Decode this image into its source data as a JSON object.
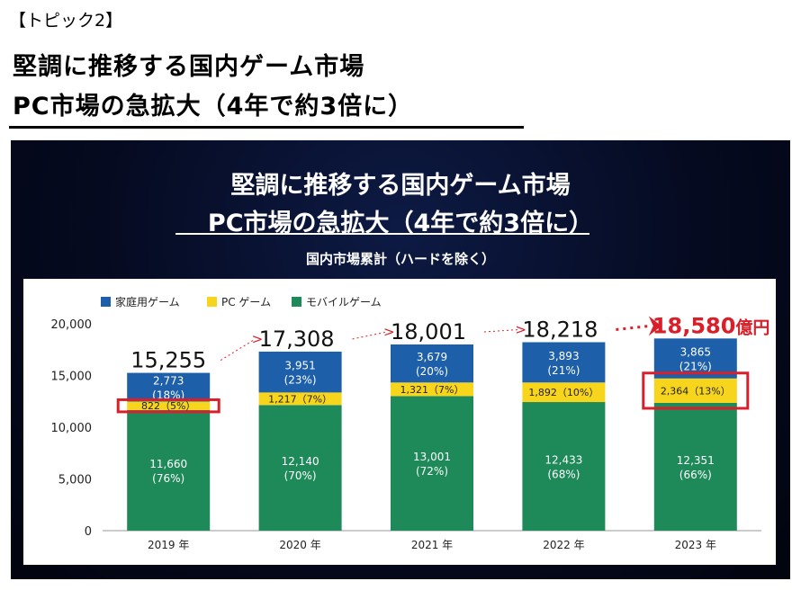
{
  "header": {
    "topic_tag": "【トピック2】",
    "title_line1": "堅調に推移する国内ゲーム市場",
    "title_line2": "PC市場の急拡大（4年で約3倍に）"
  },
  "panel": {
    "title_line1": "堅調に推移する国内ゲーム市場",
    "title_line2": "PC市場の急拡大（4年で約3倍に）",
    "subtitle": "国内市場累計（ハードを除く）"
  },
  "chart_data": {
    "type": "bar",
    "stacked": true,
    "categories": [
      "2019 年",
      "2020 年",
      "2021 年",
      "2022 年",
      "2023 年"
    ],
    "series": [
      {
        "name": "モバイルゲーム",
        "color": "#1e8a5a",
        "values": [
          11660,
          12140,
          13001,
          12433,
          12351
        ],
        "labels": [
          "11,660",
          "12,140",
          "13,001",
          "12,433",
          "12,351"
        ],
        "pct": [
          "(76%)",
          "(70%)",
          "(72%)",
          "(68%)",
          "(66%)"
        ]
      },
      {
        "name": "PC ゲーム",
        "color": "#f7d51d",
        "values": [
          822,
          1217,
          1321,
          1892,
          2364
        ],
        "labels": [
          "822（5%）",
          "1,217（7%）",
          "1,321（7%）",
          "1,892（10%）",
          "2,364（13%）"
        ]
      },
      {
        "name": "家庭用ゲーム",
        "color": "#1d5fa8",
        "values": [
          2773,
          3951,
          3679,
          3893,
          3865
        ],
        "labels": [
          "2,773",
          "3,951",
          "3,679",
          "3,893",
          "3,865"
        ],
        "pct": [
          "(18%)",
          "(23%)",
          "(20%)",
          "(21%)",
          "(21%)"
        ]
      }
    ],
    "totals": [
      "15,255",
      "17,308",
      "18,001",
      "18,218",
      "18,580"
    ],
    "final_total_unit": "億円",
    "y_ticks": [
      0,
      5000,
      10000,
      15000,
      20000
    ],
    "y_tick_labels": [
      "0",
      "5,000",
      "10,000",
      "15,000",
      "20,000"
    ],
    "ylim": [
      0,
      20000
    ],
    "legend_position": "top-left",
    "highlight_color": "#d9202a",
    "highlighted_segments": [
      "2019 年 PC ゲーム",
      "2023 年 PC ゲーム"
    ]
  }
}
